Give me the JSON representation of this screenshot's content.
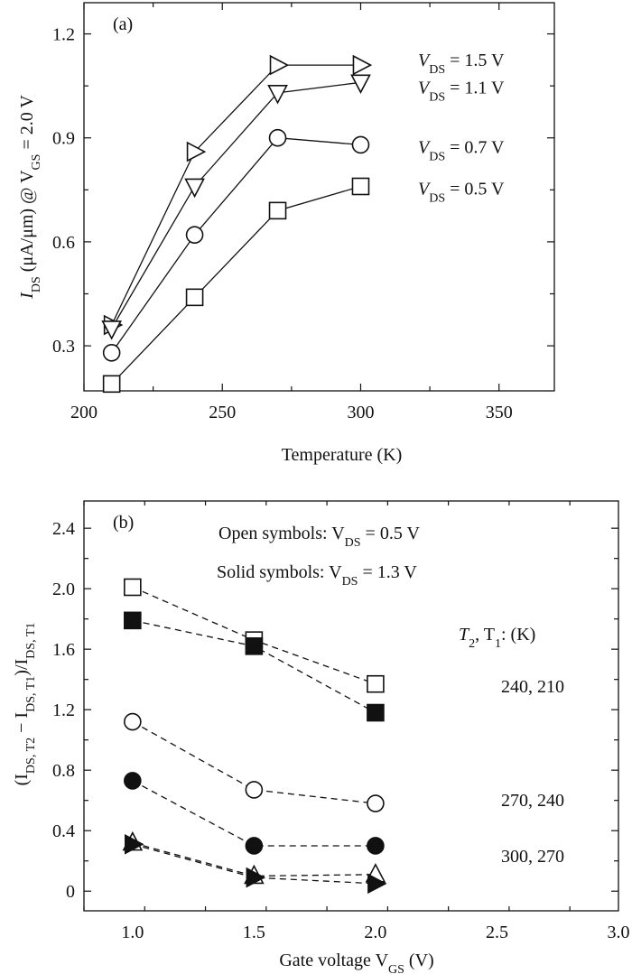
{
  "chart_data": [
    {
      "id": "a",
      "type": "line",
      "panel_label": "(a)",
      "title": "",
      "xlabel": "Temperature (K)",
      "ylabel": {
        "main": "I",
        "sub": "DS",
        "mid": " (μA/μm) @ V",
        "sub2": "GS",
        "tail": " = 2.0 V"
      },
      "xlim": [
        200,
        370
      ],
      "ylim": [
        0.17,
        1.29
      ],
      "xticks": [
        200,
        250,
        300,
        350
      ],
      "yticks": [
        0.3,
        0.6,
        0.9,
        1.2
      ],
      "ytick_labels": [
        "0.3",
        "0.6",
        "0.9",
        "1.2"
      ],
      "x": [
        210,
        240,
        270,
        300
      ],
      "series": [
        {
          "name": "V_DS = 1.5 V",
          "label": {
            "a": "V",
            "sub": "DS",
            "b": " = 1.5 V"
          },
          "marker": "triangle-right",
          "filled": false,
          "values": [
            0.36,
            0.86,
            1.11,
            1.11
          ]
        },
        {
          "name": "V_DS = 1.1 V",
          "label": {
            "a": "V",
            "sub": "DS",
            "b": " = 1.1 V"
          },
          "marker": "triangle-down",
          "filled": false,
          "values": [
            0.35,
            0.76,
            1.03,
            1.06
          ]
        },
        {
          "name": "V_DS = 0.7 V",
          "label": {
            "a": "V",
            "sub": "DS",
            "b": " = 0.7 V"
          },
          "marker": "circle",
          "filled": false,
          "values": [
            0.28,
            0.62,
            0.9,
            0.88
          ]
        },
        {
          "name": "V_DS = 0.5 V",
          "label": {
            "a": "V",
            "sub": "DS",
            "b": " = 0.5 V"
          },
          "marker": "square",
          "filled": false,
          "values": [
            0.19,
            0.44,
            0.69,
            0.76
          ]
        }
      ]
    },
    {
      "id": "b",
      "type": "line",
      "panel_label": "(b)",
      "title": "",
      "xlabel": {
        "a": "Gate voltage V",
        "sub": "GS",
        "b": " (V)"
      },
      "ylabel": {
        "p1": "(I",
        "s1": "DS, T2",
        "p2": " − I",
        "s2": "DS, T1",
        "p3": ")/I",
        "s3": "DS, T1"
      },
      "xlim": [
        0.8,
        3.0
      ],
      "ylim": [
        -0.13,
        2.58
      ],
      "xticks": [
        1.0,
        1.5,
        2.0,
        2.5,
        3.0
      ],
      "xtick_labels": [
        "1.0",
        "1.5",
        "2.0",
        "2.5",
        "3.0"
      ],
      "yticks": [
        0,
        0.4,
        0.8,
        1.2,
        1.6,
        2.0,
        2.4
      ],
      "ytick_labels": [
        "0",
        "0.4",
        "0.8",
        "1.2",
        "1.6",
        "2.0",
        "2.4"
      ],
      "line_style": "dashed",
      "x": [
        1.0,
        1.5,
        2.0
      ],
      "notes": {
        "open": {
          "a": "Open symbols:  V",
          "sub": "DS",
          "b": " = 0.5 V"
        },
        "solid": {
          "a": "Solid symbols:  V",
          "sub": "DS",
          "b": " = 1.3 V"
        },
        "temp_header": {
          "a": "T",
          "s1": "2",
          "b": ", T",
          "s2": "1",
          "c": ": (K)"
        }
      },
      "group_labels": [
        "240, 210",
        "270, 240",
        "300, 270"
      ],
      "series": [
        {
          "name": "240, 210 (open)",
          "marker": "square",
          "filled": false,
          "values": [
            2.01,
            1.66,
            1.37
          ]
        },
        {
          "name": "240, 210 (solid)",
          "marker": "square",
          "filled": true,
          "values": [
            1.79,
            1.62,
            1.18
          ]
        },
        {
          "name": "270, 240 (open)",
          "marker": "circle",
          "filled": false,
          "values": [
            1.12,
            0.67,
            0.58
          ]
        },
        {
          "name": "270, 240 (solid)",
          "marker": "circle",
          "filled": true,
          "values": [
            0.73,
            0.3,
            0.3
          ]
        },
        {
          "name": "300, 270 (open)",
          "marker": "triangle-up",
          "filled": false,
          "values": [
            0.32,
            0.1,
            0.11
          ]
        },
        {
          "name": "300, 270 (solid)",
          "marker": "triangle-right",
          "filled": true,
          "values": [
            0.31,
            0.09,
            0.05
          ]
        }
      ]
    }
  ]
}
